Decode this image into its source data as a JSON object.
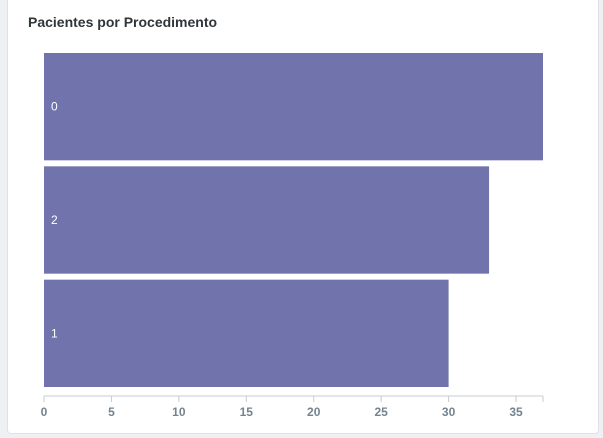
{
  "card": {
    "title": "Pacientes por Procedimento"
  },
  "colors": {
    "bar": "#7173ad",
    "axis": "#c5ccd3"
  },
  "chart_data": {
    "type": "bar",
    "orientation": "horizontal",
    "categories": [
      "0",
      "2",
      "1"
    ],
    "values": [
      37,
      33,
      30
    ],
    "xlim": [
      0,
      37
    ],
    "x_ticks": [
      0,
      5,
      10,
      15,
      20,
      25,
      30,
      35
    ],
    "xlabel": "",
    "ylabel": "",
    "grid": false,
    "legend": "none"
  }
}
